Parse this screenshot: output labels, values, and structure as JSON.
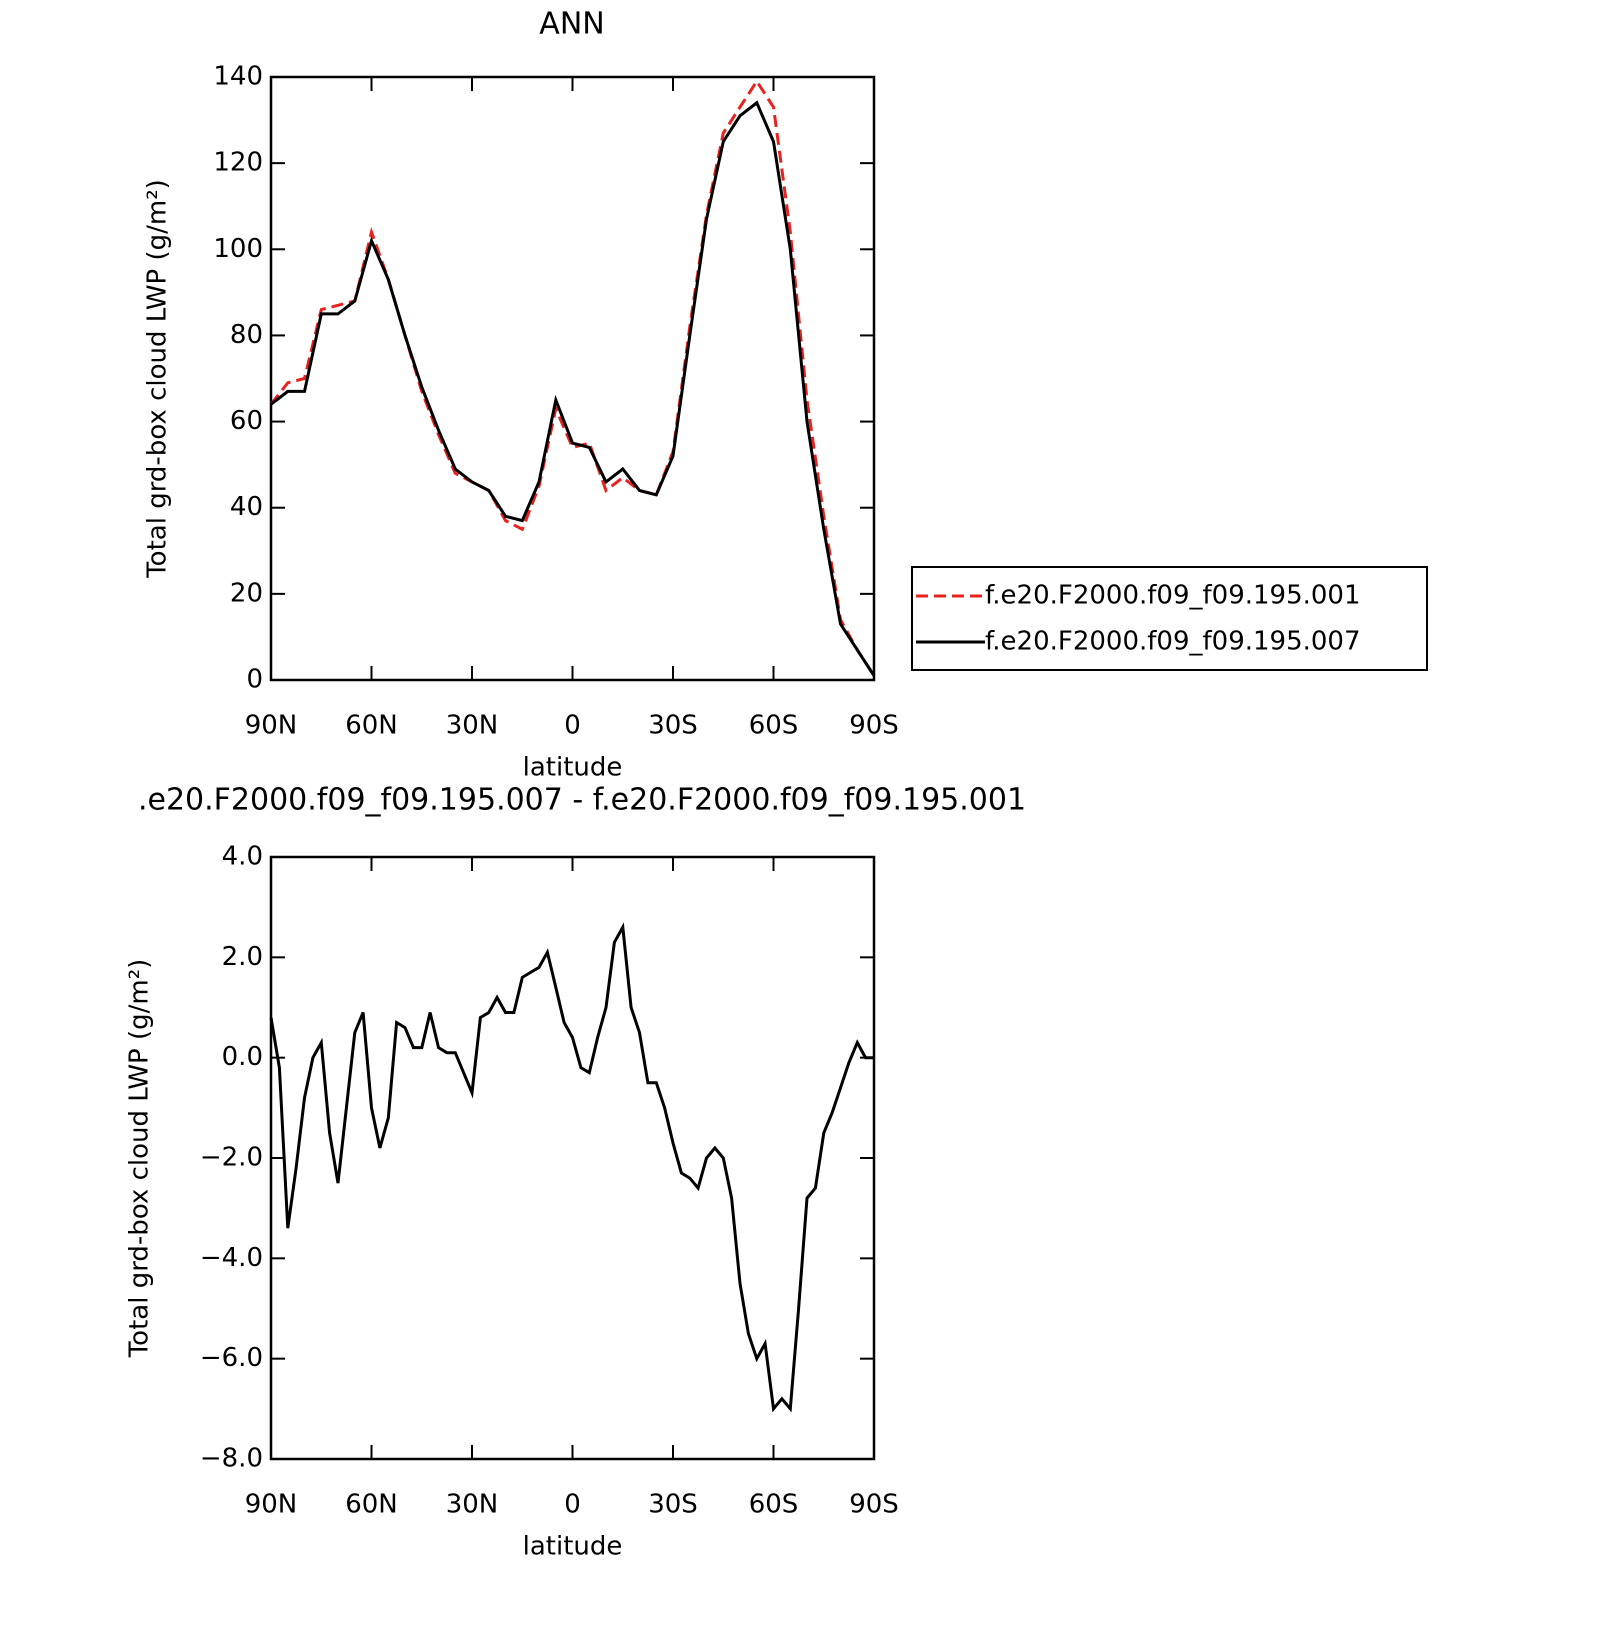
{
  "chart_data": [
    {
      "type": "line",
      "title": "ANN",
      "xlabel": "latitude",
      "ylabel": "Total grd-box cloud LWP (g/m²)",
      "x": [
        90,
        85,
        80,
        75,
        70,
        65,
        60,
        55,
        50,
        45,
        40,
        35,
        30,
        25,
        20,
        15,
        10,
        5,
        0,
        -5,
        -10,
        -15,
        -20,
        -25,
        -30,
        -35,
        -40,
        -45,
        -50,
        -55,
        -60,
        -65,
        -70,
        -75,
        -80,
        -85,
        -90
      ],
      "series": [
        {
          "name": "f.e20.F2000.f09_f09.195.001",
          "color": "#e8231f",
          "line_style": "dashed",
          "values": [
            64,
            69,
            70,
            86,
            87,
            88,
            104,
            93,
            80,
            67,
            57,
            48,
            46,
            44,
            37,
            35,
            45,
            63,
            54,
            55,
            44,
            47,
            44,
            43,
            53,
            82,
            108,
            127,
            133,
            139,
            133,
            104,
            65,
            38,
            14,
            7,
            1
          ]
        },
        {
          "name": "f.e20.F2000.f09_f09.195.007",
          "color": "#000000",
          "line_style": "solid",
          "values": [
            64,
            67,
            67,
            85,
            85,
            88,
            102,
            93,
            80,
            68,
            58,
            49,
            46,
            44,
            38,
            37,
            46,
            65,
            55,
            54,
            46,
            49,
            44,
            43,
            52,
            80,
            107,
            125,
            131,
            134,
            125,
            100,
            60,
            35,
            13,
            7,
            1
          ]
        }
      ],
      "xlim": [
        90,
        -90
      ],
      "xticks": [
        {
          "value": 90,
          "label": "90N"
        },
        {
          "value": 60,
          "label": "60N"
        },
        {
          "value": 30,
          "label": "30N"
        },
        0,
        {
          "value": -30,
          "label": "30S"
        },
        {
          "value": -60,
          "label": "60S"
        },
        {
          "value": -90,
          "label": "90S"
        }
      ],
      "ylim": [
        0,
        140
      ],
      "yticks": [
        0,
        20,
        40,
        60,
        80,
        100,
        120,
        140
      ],
      "legend": "right"
    },
    {
      "type": "line",
      "title": ".e20.F2000.f09_f09.195.007 - f.e20.F2000.f09_f09.195.001",
      "xlabel": "latitude",
      "ylabel": "Total grd-box cloud LWP (g/m²)",
      "x": [
        90,
        87.5,
        85,
        82.5,
        80,
        77.5,
        75,
        72.5,
        70,
        67.5,
        65,
        62.5,
        60,
        57.5,
        55,
        52.5,
        50,
        47.5,
        45,
        42.5,
        40,
        37.5,
        35,
        32.5,
        30,
        27.5,
        25,
        22.5,
        20,
        17.5,
        15,
        12.5,
        10,
        7.5,
        5,
        2.5,
        0,
        -2.5,
        -5,
        -7.5,
        -10,
        -12.5,
        -15,
        -17.5,
        -20,
        -22.5,
        -25,
        -27.5,
        -30,
        -32.5,
        -35,
        -37.5,
        -40,
        -42.5,
        -45,
        -47.5,
        -50,
        -52.5,
        -55,
        -57.5,
        -60,
        -62.5,
        -65,
        -67.5,
        -70,
        -72.5,
        -75,
        -77.5,
        -80,
        -82.5,
        -85,
        -87.5,
        -90
      ],
      "series": [
        {
          "name": "f.e20.F2000.f09_f09.195.007 - f.e20.F2000.f09_f09.195.001",
          "color": "#000000",
          "line_style": "solid",
          "values": [
            0.8,
            -0.2,
            -3.4,
            -2.2,
            -0.8,
            0.0,
            0.3,
            -1.5,
            -2.5,
            -1.0,
            0.5,
            0.9,
            -1.0,
            -1.8,
            -1.2,
            0.7,
            0.6,
            0.2,
            0.2,
            0.9,
            0.2,
            0.1,
            0.1,
            -0.3,
            -0.7,
            0.8,
            0.9,
            1.2,
            0.9,
            0.9,
            1.6,
            1.7,
            1.8,
            2.1,
            1.4,
            0.7,
            0.4,
            -0.2,
            -0.3,
            0.4,
            1.0,
            2.3,
            2.6,
            1.0,
            0.5,
            -0.5,
            -0.5,
            -1.0,
            -1.7,
            -2.3,
            -2.4,
            -2.6,
            -2.0,
            -1.8,
            -2.0,
            -2.8,
            -4.5,
            -5.5,
            -6.0,
            -5.7,
            -7.0,
            -6.8,
            -7.0,
            -5.0,
            -2.8,
            -2.6,
            -1.5,
            -1.1,
            -0.6,
            -0.1,
            0.3,
            0.0,
            0.0
          ]
        }
      ],
      "xlim": [
        90,
        -90
      ],
      "xticks": [
        {
          "value": 90,
          "label": "90N"
        },
        {
          "value": 60,
          "label": "60N"
        },
        {
          "value": 30,
          "label": "30N"
        },
        0,
        {
          "value": -30,
          "label": "30S"
        },
        {
          "value": -60,
          "label": "60S"
        },
        {
          "value": -90,
          "label": "90S"
        }
      ],
      "ylim": [
        -8,
        4
      ],
      "yticks": [
        {
          "value": -8,
          "label": "−8.0"
        },
        {
          "value": -6,
          "label": "−6.0"
        },
        {
          "value": -4,
          "label": "−4.0"
        },
        {
          "value": -2,
          "label": "−2.0"
        },
        {
          "value": 0,
          "label": "0.0"
        },
        {
          "value": 2,
          "label": "2.0"
        },
        {
          "value": 4,
          "label": "4.0"
        }
      ]
    }
  ]
}
